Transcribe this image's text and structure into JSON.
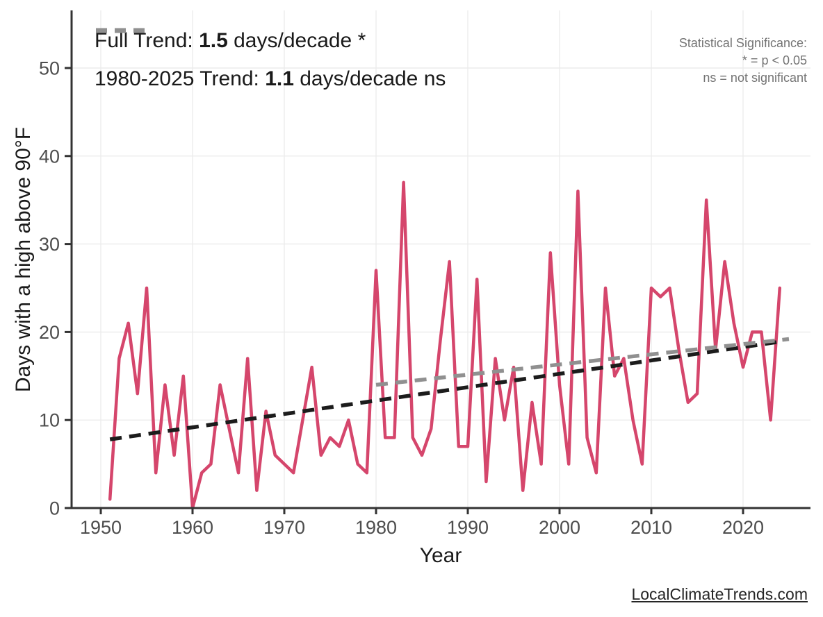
{
  "legend": {
    "full_trend": {
      "prefix": "Full Trend: ",
      "value": "1.5",
      "suffix": " days/decade *"
    },
    "recent_trend": {
      "prefix": "1980-2025 Trend: ",
      "value": "1.1",
      "suffix": " days/decade ns"
    }
  },
  "significance_note": {
    "line1": "Statistical Significance:",
    "line2": "* = p < 0.05",
    "line3": "ns = not significant"
  },
  "axes": {
    "x_label": "Year",
    "y_label": "Days with a high above 90°F",
    "x_ticks": [
      1950,
      1960,
      1970,
      1980,
      1990,
      2000,
      2010,
      2020
    ],
    "y_ticks": [
      0,
      10,
      20,
      30,
      40,
      50
    ]
  },
  "watermark": "LocalClimateTrends.com",
  "colors": {
    "series": "#d5466c",
    "full_trend": "#1c1c1c",
    "recent_trend": "#909090",
    "axis_text": "#4d4d4d",
    "note_text": "#737373"
  },
  "chart_data": {
    "type": "line",
    "title": "",
    "xlabel": "Year",
    "ylabel": "Days with a high above 90°F",
    "xlim": [
      1946.8,
      2027.3
    ],
    "ylim": [
      0,
      56.5
    ],
    "grid": true,
    "legend_position": "top-left inside",
    "x": [
      1951,
      1952,
      1953,
      1954,
      1955,
      1956,
      1957,
      1958,
      1959,
      1960,
      1961,
      1962,
      1963,
      1964,
      1965,
      1966,
      1967,
      1968,
      1969,
      1970,
      1971,
      1972,
      1973,
      1974,
      1975,
      1976,
      1977,
      1978,
      1979,
      1980,
      1981,
      1982,
      1983,
      1984,
      1985,
      1986,
      1987,
      1988,
      1989,
      1990,
      1991,
      1992,
      1993,
      1994,
      1995,
      1996,
      1997,
      1998,
      1999,
      2000,
      2001,
      2002,
      2003,
      2004,
      2005,
      2006,
      2007,
      2008,
      2009,
      2010,
      2011,
      2012,
      2013,
      2014,
      2015,
      2016,
      2017,
      2018,
      2019,
      2020,
      2021,
      2022,
      2023,
      2024
    ],
    "series": [
      {
        "name": "Days with a high above 90°F",
        "values": [
          1,
          17,
          21,
          13,
          25,
          4,
          14,
          6,
          15,
          0,
          4,
          5,
          14,
          9,
          4,
          17,
          2,
          11,
          6,
          5,
          4,
          10,
          16,
          6,
          8,
          7,
          10,
          5,
          4,
          27,
          8,
          8,
          37,
          8,
          6,
          9,
          19,
          28,
          7,
          7,
          26,
          3,
          17,
          10,
          16,
          2,
          12,
          5,
          29,
          14,
          5,
          36,
          8,
          4,
          25,
          15,
          17,
          10,
          5,
          25,
          24,
          25,
          18,
          12,
          13,
          35,
          18,
          28,
          21,
          16,
          20,
          20,
          10,
          25
        ]
      }
    ],
    "trends": [
      {
        "name": "Full Trend",
        "slope_days_per_decade": 1.5,
        "significance": "*",
        "x0": 1951,
        "y0": 7.8,
        "x1": 2024,
        "y1": 18.9
      },
      {
        "name": "1980-2025 Trend",
        "slope_days_per_decade": 1.1,
        "significance": "ns",
        "x0": 1980,
        "y0": 14.0,
        "x1": 2025,
        "y1": 19.2
      }
    ]
  }
}
